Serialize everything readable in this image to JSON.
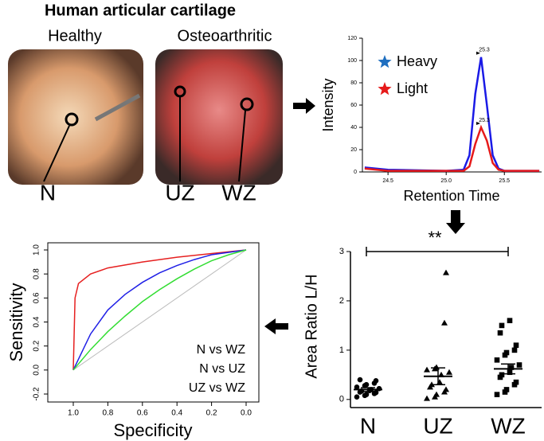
{
  "figure": {
    "title": "Human articular cartilage",
    "photo_labels": [
      "Healthy",
      "Osteoarthritic"
    ],
    "zones": [
      "N",
      "UZ",
      "WZ"
    ]
  },
  "chart_data": [
    {
      "type": "line",
      "xlabel": "Retention Time",
      "ylabel": "Intensity",
      "x": [
        24.3,
        24.5,
        25.0,
        25.15,
        25.2,
        25.25,
        25.3,
        25.35,
        25.4,
        25.45,
        25.5,
        25.8
      ],
      "series": [
        {
          "name": "Heavy",
          "color": "#1a1ae6",
          "legend_color": "#1f6fc0",
          "peak_label": "25.3",
          "values": [
            4,
            2,
            1,
            2,
            15,
            70,
            103,
            60,
            15,
            3,
            1,
            1
          ]
        },
        {
          "name": "Light",
          "color": "#e61a1a",
          "legend_color": "#e61a1a",
          "peak_label": "25.3",
          "values": [
            3,
            1,
            1,
            1,
            5,
            25,
            40,
            28,
            8,
            2,
            1,
            1
          ]
        }
      ],
      "xlim": [
        24.28,
        25.82
      ],
      "xticks": [
        24.5,
        {
          "value": 25.0,
          "label": "25.0"
        },
        25.5
      ],
      "ylim": [
        0,
        120
      ],
      "yticks": [
        0,
        20,
        40,
        60,
        80,
        100,
        120
      ],
      "legend": "upper left"
    },
    {
      "type": "strip",
      "ylabel": "Area Ratio L/H",
      "categories": [
        "N",
        "UZ",
        "WZ"
      ],
      "markers": [
        "circle",
        "triangle",
        "square"
      ],
      "color": "#000000",
      "values": [
        [
          0.05,
          0.08,
          0.1,
          0.12,
          0.14,
          0.15,
          0.17,
          0.18,
          0.2,
          0.22,
          0.25,
          0.28,
          0.3,
          0.33,
          0.38,
          0.4
        ],
        [
          0.02,
          0.05,
          0.1,
          0.15,
          0.2,
          0.25,
          0.3,
          0.35,
          0.5,
          0.55,
          0.6,
          0.62,
          0.65,
          1.55,
          2.57
        ],
        [
          0.1,
          0.15,
          0.2,
          0.3,
          0.35,
          0.45,
          0.5,
          0.55,
          0.65,
          0.7,
          0.8,
          0.9,
          0.95,
          1.0,
          1.1,
          1.35,
          1.5,
          1.6
        ]
      ],
      "means": [
        0.2,
        0.47,
        0.62
      ],
      "sem": [
        0.04,
        0.17,
        0.1
      ],
      "significance": "**",
      "ylim": [
        -0.1,
        3
      ],
      "yticks": [
        0,
        1,
        2,
        3
      ]
    },
    {
      "type": "roc",
      "xlabel": "Specificity",
      "ylabel": "Sensitivity",
      "series": [
        {
          "name": "N vs WZ",
          "color": "#e62020",
          "x": [
            1.0,
            0.99,
            0.97,
            0.9,
            0.8,
            0.6,
            0.4,
            0.2,
            0.0
          ],
          "values": [
            0,
            0.6,
            0.72,
            0.8,
            0.85,
            0.9,
            0.94,
            0.97,
            1.0
          ]
        },
        {
          "name": "N vs UZ",
          "color": "#2020e6",
          "x": [
            1.0,
            0.9,
            0.8,
            0.7,
            0.6,
            0.5,
            0.4,
            0.3,
            0.2,
            0.1,
            0.0
          ],
          "values": [
            0,
            0.3,
            0.5,
            0.63,
            0.73,
            0.81,
            0.87,
            0.92,
            0.96,
            0.98,
            1.0
          ]
        },
        {
          "name": "UZ vs WZ",
          "color": "#33dd33",
          "x": [
            1.0,
            0.9,
            0.8,
            0.7,
            0.6,
            0.5,
            0.4,
            0.3,
            0.2,
            0.1,
            0.0
          ],
          "values": [
            0,
            0.17,
            0.32,
            0.45,
            0.57,
            0.67,
            0.76,
            0.84,
            0.91,
            0.96,
            1.0
          ]
        }
      ],
      "xlim": [
        1,
        0
      ],
      "xticks": [
        {
          "value": 1,
          "label": "1.0"
        },
        0.8,
        0.6,
        0.4,
        0.2,
        {
          "value": 0,
          "label": "0.0"
        }
      ],
      "ylim": [
        -0.2,
        1
      ],
      "yticks": [
        -0.2,
        {
          "value": 0,
          "label": "0.0"
        },
        0.2,
        0.4,
        0.6,
        0.8,
        {
          "value": 1,
          "label": "1.0"
        }
      ],
      "legend": "lower right"
    }
  ]
}
